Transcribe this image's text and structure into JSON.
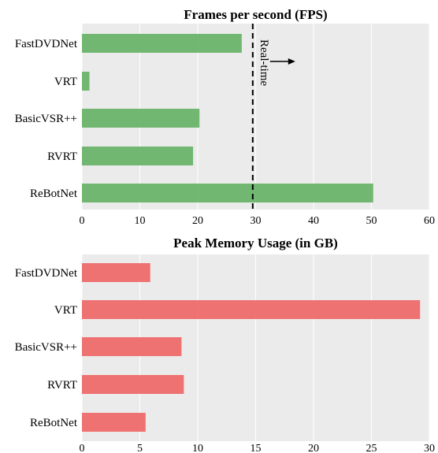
{
  "chart_data": [
    {
      "type": "bar",
      "orientation": "horizontal",
      "title": "Frames per second (FPS)",
      "categories": [
        "FastDVDNet",
        "VRT",
        "BasicVSR++",
        "RVRT",
        "ReBotNet"
      ],
      "values": [
        27.6,
        1.3,
        20.3,
        19.2,
        50.3
      ],
      "xlim": [
        0,
        60
      ],
      "xticks": [
        0,
        10,
        20,
        30,
        40,
        50,
        60
      ],
      "bar_color": "#6ab46a",
      "grid": true,
      "reference_line": {
        "x": 29.5,
        "style": "dashed",
        "label": "Real-time",
        "arrow": "right"
      }
    },
    {
      "type": "bar",
      "orientation": "horizontal",
      "title": "Peak Memory Usage (in GB)",
      "categories": [
        "FastDVDNet",
        "VRT",
        "BasicVSR++",
        "RVRT",
        "ReBotNet"
      ],
      "values": [
        5.9,
        29.2,
        8.6,
        8.8,
        5.5
      ],
      "xlim": [
        0,
        30
      ],
      "xticks": [
        0,
        5,
        10,
        15,
        20,
        25,
        30
      ],
      "bar_color": "#ef6b6b",
      "grid": true
    }
  ]
}
